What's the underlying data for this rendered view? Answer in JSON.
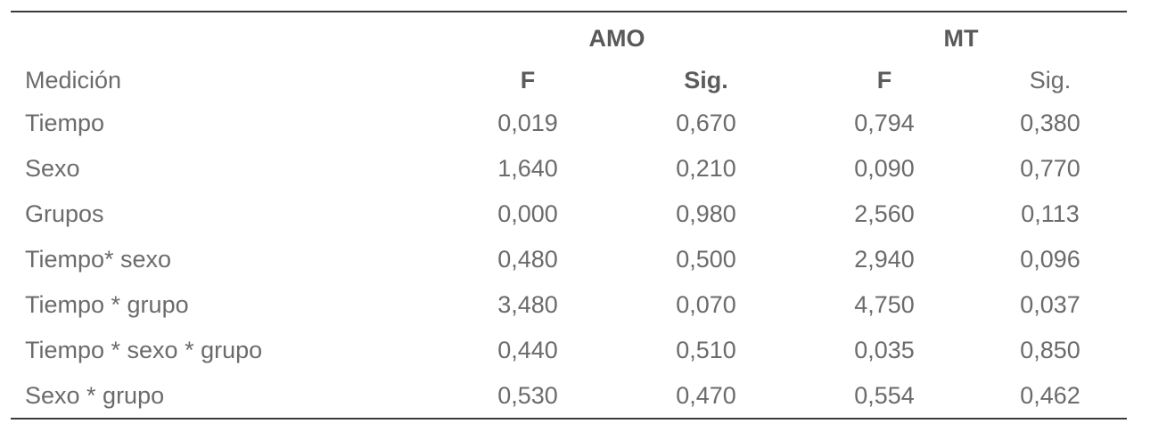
{
  "table": {
    "group_headers": {
      "amo": "AMO",
      "mt": "MT"
    },
    "header": {
      "row_label": "Medición",
      "col1": "F",
      "col2": "Sig.",
      "col3": "F",
      "col4": "Sig."
    },
    "rows": [
      {
        "label": "Tiempo",
        "v1": "0,019",
        "v2": "0,670",
        "v3": "0,794",
        "v4": "0,380"
      },
      {
        "label": "Sexo",
        "v1": "1,640",
        "v2": "0,210",
        "v3": "0,090",
        "v4": "0,770"
      },
      {
        "label": "Grupos",
        "v1": "0,000",
        "v2": "0,980",
        "v3": "2,560",
        "v4": "0,113"
      },
      {
        "label": "Tiempo* sexo",
        "v1": "0,480",
        "v2": "0,500",
        "v3": "2,940",
        "v4": "0,096"
      },
      {
        "label": "Tiempo * grupo",
        "v1": "3,480",
        "v2": "0,070",
        "v3": "4,750",
        "v4": "0,037"
      },
      {
        "label": "Tiempo * sexo * grupo",
        "v1": "0,440",
        "v2": "0,510",
        "v3": "0,035",
        "v4": "0,850"
      },
      {
        "label": "Sexo * grupo",
        "v1": "0,530",
        "v2": "0,470",
        "v3": "0,554",
        "v4": "0,462"
      }
    ],
    "colors": {
      "text": "#6b6b6b",
      "bold_text": "#5c5c5c",
      "rule": "#3b3b3b",
      "background": "#ffffff"
    }
  }
}
